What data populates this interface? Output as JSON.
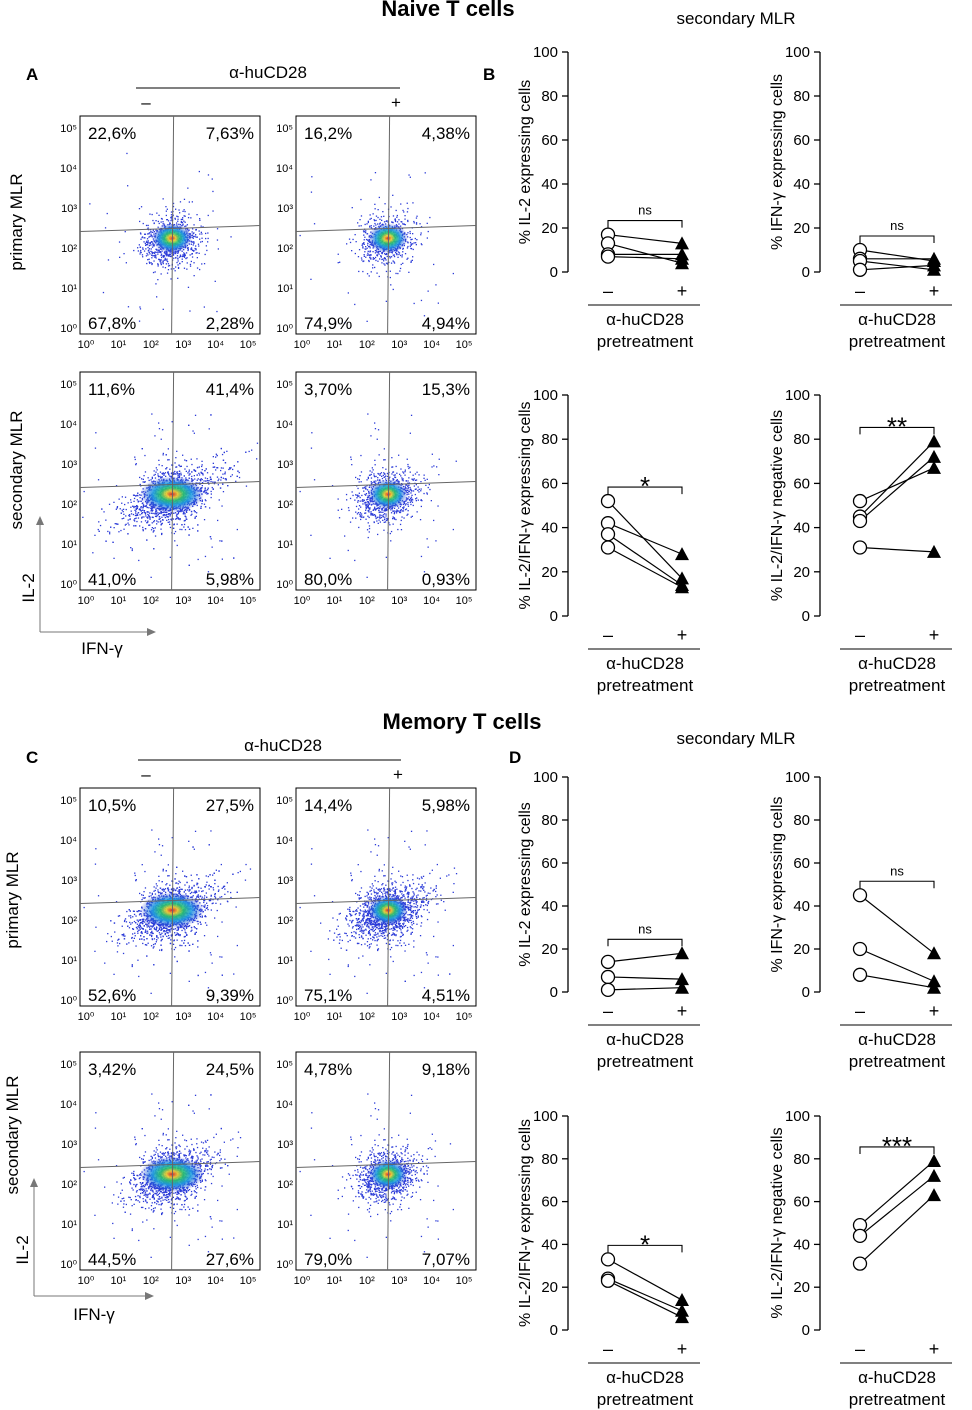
{
  "titles": {
    "naive": "Naive T cells",
    "memory": "Memory T cells"
  },
  "subtitles": {
    "naive": "secondary MLR",
    "memory": "secondary MLR"
  },
  "panel_letters": {
    "A": "A",
    "B": "B",
    "C": "C",
    "D": "D"
  },
  "treatment": {
    "label": "α-huCD28",
    "minus": "–",
    "plus": "+"
  },
  "row_labels": {
    "primary": "primary MLR",
    "secondary": "secondary MLR"
  },
  "axis_labels": {
    "y": "IL-2",
    "x": "IFN-γ"
  },
  "flow_ticks": [
    "10⁰",
    "10¹",
    "10²",
    "10³",
    "10⁴",
    "10⁵"
  ],
  "flow_quadrants": {
    "A": {
      "primary_minus": {
        "ul": "22,6%",
        "ur": "7,63%",
        "ll": "67,8%",
        "lr": "2,28%"
      },
      "primary_plus": {
        "ul": "16,2%",
        "ur": "4,38%",
        "ll": "74,9%",
        "lr": "4,94%"
      },
      "secondary_minus": {
        "ul": "11,6%",
        "ur": "41,4%",
        "ll": "41,0%",
        "lr": "5,98%"
      },
      "secondary_plus": {
        "ul": "3,70%",
        "ur": "15,3%",
        "ll": "80,0%",
        "lr": "0,93%"
      }
    },
    "C": {
      "primary_minus": {
        "ul": "10,5%",
        "ur": "27,5%",
        "ll": "52,6%",
        "lr": "9,39%"
      },
      "primary_plus": {
        "ul": "14,4%",
        "ur": "5,98%",
        "ll": "75,1%",
        "lr": "4,51%"
      },
      "secondary_minus": {
        "ul": "3,42%",
        "ur": "24,5%",
        "ll": "44,5%",
        "lr": "27,6%"
      },
      "secondary_plus": {
        "ul": "4,78%",
        "ur": "9,18%",
        "ll": "79,0%",
        "lr": "7,07%"
      }
    }
  },
  "paired_x": {
    "minus": "–",
    "plus": "+",
    "label1": "α-huCD28",
    "label2": "pretreatment"
  },
  "chart_data": [
    {
      "type": "scatter",
      "panel": "B",
      "ylabel": "% IL-2 expressing cells",
      "ylim": [
        0,
        100
      ],
      "yticks": [
        0,
        20,
        40,
        60,
        80,
        100
      ],
      "significance": "ns",
      "pairs": [
        [
          17,
          13
        ],
        [
          13,
          4
        ],
        [
          8,
          8
        ],
        [
          7,
          6
        ]
      ]
    },
    {
      "type": "scatter",
      "panel": "B",
      "ylabel": "% IFN-γ expressing cells",
      "ylim": [
        0,
        100
      ],
      "yticks": [
        0,
        20,
        40,
        60,
        80,
        100
      ],
      "significance": "ns",
      "pairs": [
        [
          10,
          5
        ],
        [
          6,
          6
        ],
        [
          5,
          1
        ],
        [
          1,
          3
        ]
      ]
    },
    {
      "type": "scatter",
      "panel": "B",
      "ylabel": "% IL-2/IFN-γ expressing cells",
      "ylim": [
        0,
        100
      ],
      "yticks": [
        0,
        20,
        40,
        60,
        80,
        100
      ],
      "significance": "*",
      "pairs": [
        [
          52,
          17
        ],
        [
          42,
          28
        ],
        [
          37,
          14
        ],
        [
          31,
          13
        ]
      ]
    },
    {
      "type": "scatter",
      "panel": "B",
      "ylabel": "% IL-2/IFN-γ negative cells",
      "ylim": [
        0,
        100
      ],
      "yticks": [
        0,
        20,
        40,
        60,
        80,
        100
      ],
      "significance": "**",
      "pairs": [
        [
          52,
          67
        ],
        [
          45,
          79
        ],
        [
          43,
          72
        ],
        [
          31,
          29
        ]
      ]
    },
    {
      "type": "scatter",
      "panel": "D",
      "ylabel": "% IL-2 expressing cells",
      "ylim": [
        0,
        100
      ],
      "yticks": [
        0,
        20,
        40,
        60,
        80,
        100
      ],
      "significance": "ns",
      "pairs": [
        [
          14,
          18
        ],
        [
          7,
          6
        ],
        [
          1,
          2
        ]
      ]
    },
    {
      "type": "scatter",
      "panel": "D",
      "ylabel": "% IFN-γ expressing cells",
      "ylim": [
        0,
        100
      ],
      "yticks": [
        0,
        20,
        40,
        60,
        80,
        100
      ],
      "significance": "ns",
      "pairs": [
        [
          45,
          18
        ],
        [
          20,
          5
        ],
        [
          8,
          2
        ]
      ]
    },
    {
      "type": "scatter",
      "panel": "D",
      "ylabel": "% IL-2/IFN-γ expressing cells",
      "ylim": [
        0,
        100
      ],
      "yticks": [
        0,
        20,
        40,
        60,
        80,
        100
      ],
      "significance": "*",
      "pairs": [
        [
          33,
          14
        ],
        [
          24,
          9
        ],
        [
          23,
          6
        ]
      ]
    },
    {
      "type": "scatter",
      "panel": "D",
      "ylabel": "% IL-2/IFN-γ negative cells",
      "ylim": [
        0,
        100
      ],
      "yticks": [
        0,
        20,
        40,
        60,
        80,
        100
      ],
      "significance": "***",
      "pairs": [
        [
          49,
          79
        ],
        [
          44,
          72
        ],
        [
          31,
          63
        ]
      ]
    }
  ]
}
